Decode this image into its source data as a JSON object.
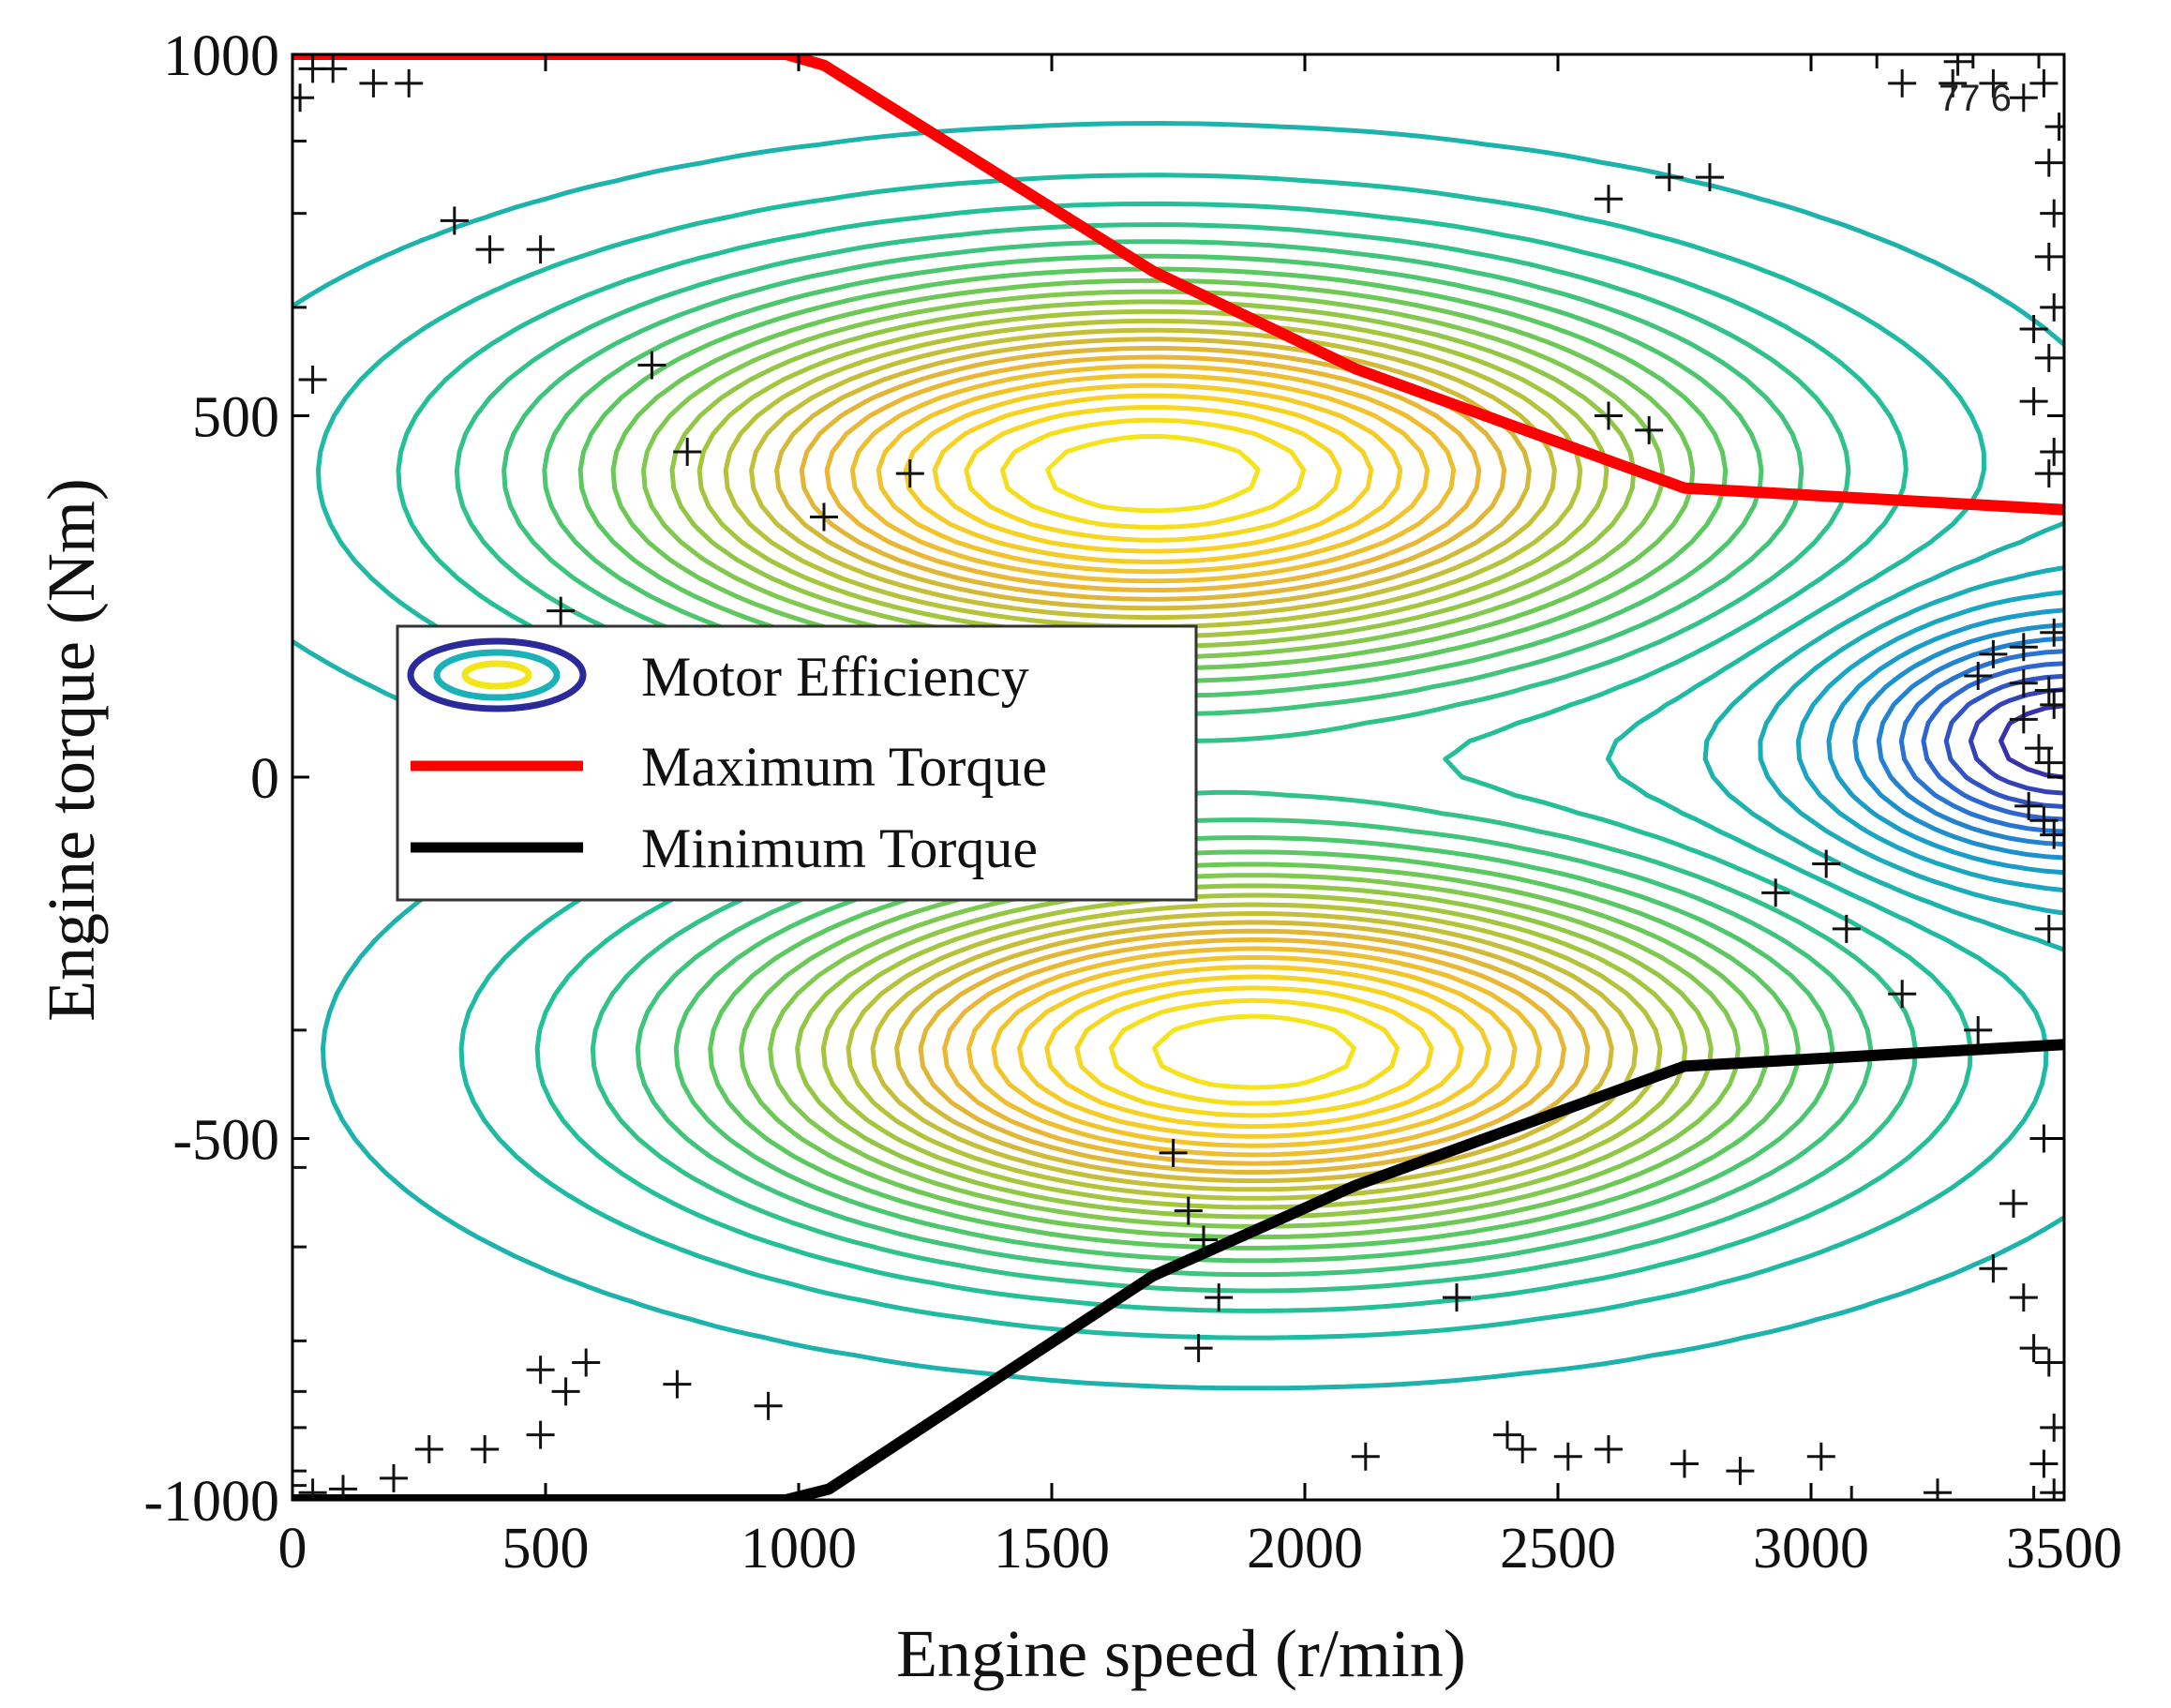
{
  "chart_data": {
    "type": "line",
    "subtype": "contour_map_with_boundary_lines",
    "xlabel": "Engine speed (r/min)",
    "ylabel": "Engine torque (Nm)",
    "xlim": [
      0,
      3500
    ],
    "ylim": [
      -1000,
      1000
    ],
    "x_ticks": [
      0,
      500,
      1000,
      1500,
      2000,
      2500,
      3000,
      3500
    ],
    "x_tick_labels": [
      "0",
      "500",
      "1000",
      "1500",
      "2000",
      "2500",
      "3000",
      "3500"
    ],
    "y_ticks": [
      1000,
      500,
      0,
      -500,
      -1000
    ],
    "y_tick_labels": [
      "1000",
      "500",
      "0",
      "-500",
      "-1000"
    ],
    "legend_position": "center-left",
    "legend": [
      {
        "label": "Motor Efficiency",
        "kind": "contour"
      },
      {
        "label": "Maximum Torque",
        "kind": "line",
        "color": "#ff0000"
      },
      {
        "label": "Minimum Torque",
        "kind": "line",
        "color": "#000000"
      }
    ],
    "contour_label": "77 6",
    "series": [
      {
        "name": "Maximum Torque",
        "color": "#ff0000",
        "x": [
          0,
          975,
          1050,
          1700,
          2100,
          2750,
          3500
        ],
        "y": [
          1000,
          1000,
          985,
          700,
          565,
          400,
          370
        ]
      },
      {
        "name": "Minimum Torque",
        "color": "#000000",
        "x": [
          0,
          975,
          1060,
          1700,
          2100,
          2750,
          3500
        ],
        "y": [
          -1000,
          -1000,
          -985,
          -690,
          -565,
          -400,
          -370
        ]
      }
    ],
    "contours": {
      "levels": 34,
      "colors": [
        "#3b1f9e",
        "#2c6ad4",
        "#17a3c9",
        "#1fbf9a",
        "#5bc95f",
        "#a9c63a",
        "#e8b437",
        "#f7d024",
        "#f5ea18"
      ],
      "peaks": [
        {
          "x": 1700,
          "y": 420,
          "sx": 1000,
          "sy": 250
        },
        {
          "x": 1900,
          "y": -380,
          "sx": 950,
          "sy": 240
        }
      ],
      "trough": {
        "x": 3500,
        "y": 50,
        "sx": 420,
        "sy": 160
      }
    },
    "markers": {
      "symbol": "+",
      "points": [
        [
          15,
          940
        ],
        [
          40,
          980
        ],
        [
          80,
          980
        ],
        [
          160,
          960
        ],
        [
          230,
          960
        ],
        [
          0,
          880
        ],
        [
          0,
          780
        ],
        [
          320,
          770
        ],
        [
          390,
          730
        ],
        [
          490,
          730
        ],
        [
          0,
          650
        ],
        [
          40,
          550
        ],
        [
          710,
          570
        ],
        [
          780,
          450
        ],
        [
          1220,
          420
        ],
        [
          1050,
          360
        ],
        [
          530,
          230
        ],
        [
          3130,
          1000
        ],
        [
          3180,
          960
        ],
        [
          3280,
          960
        ],
        [
          3290,
          990
        ],
        [
          3320,
          1000
        ],
        [
          3360,
          960
        ],
        [
          3420,
          940
        ],
        [
          3450,
          1000
        ],
        [
          3460,
          960
        ],
        [
          3490,
          900
        ],
        [
          3470,
          850
        ],
        [
          3480,
          780
        ],
        [
          3470,
          720
        ],
        [
          3480,
          650
        ],
        [
          3440,
          620
        ],
        [
          3470,
          580
        ],
        [
          3440,
          520
        ],
        [
          3480,
          450
        ],
        [
          3470,
          420
        ],
        [
          2600,
          800
        ],
        [
          2720,
          830
        ],
        [
          2800,
          830
        ],
        [
          2600,
          500
        ],
        [
          2680,
          480
        ],
        [
          3330,
          140
        ],
        [
          3360,
          170
        ],
        [
          3420,
          180
        ],
        [
          3480,
          200
        ],
        [
          3420,
          130
        ],
        [
          3470,
          120
        ],
        [
          3480,
          100
        ],
        [
          3420,
          80
        ],
        [
          3450,
          40
        ],
        [
          3470,
          20
        ],
        [
          3430,
          -40
        ],
        [
          3460,
          -60
        ],
        [
          3480,
          -80
        ],
        [
          2930,
          -160
        ],
        [
          3030,
          -120
        ],
        [
          3070,
          -210
        ],
        [
          3180,
          -300
        ],
        [
          3330,
          -350
        ],
        [
          3470,
          -210
        ],
        [
          0,
          -350
        ],
        [
          0,
          -540
        ],
        [
          0,
          -650
        ],
        [
          0,
          -780
        ],
        [
          0,
          -850
        ],
        [
          0,
          -900
        ],
        [
          0,
          -960
        ],
        [
          0,
          -980
        ],
        [
          40,
          -990
        ],
        [
          100,
          -985
        ],
        [
          200,
          -970
        ],
        [
          270,
          -930
        ],
        [
          380,
          -930
        ],
        [
          490,
          -910
        ],
        [
          490,
          -820
        ],
        [
          540,
          -850
        ],
        [
          580,
          -810
        ],
        [
          760,
          -840
        ],
        [
          940,
          -870
        ],
        [
          1740,
          -520
        ],
        [
          1770,
          -600
        ],
        [
          1800,
          -640
        ],
        [
          1830,
          -720
        ],
        [
          1790,
          -790
        ],
        [
          2120,
          -940
        ],
        [
          2300,
          -720
        ],
        [
          2400,
          -910
        ],
        [
          2430,
          -930
        ],
        [
          2520,
          -940
        ],
        [
          2600,
          -930
        ],
        [
          2750,
          -950
        ],
        [
          2860,
          -960
        ],
        [
          3020,
          -940
        ],
        [
          3080,
          -1000
        ],
        [
          3250,
          -990
        ],
        [
          3460,
          -500
        ],
        [
          3400,
          -590
        ],
        [
          3360,
          -680
        ],
        [
          3420,
          -720
        ],
        [
          3440,
          -790
        ],
        [
          3470,
          -810
        ],
        [
          3480,
          -900
        ],
        [
          3460,
          -950
        ],
        [
          3480,
          -990
        ],
        [
          3440,
          -1000
        ]
      ]
    }
  }
}
